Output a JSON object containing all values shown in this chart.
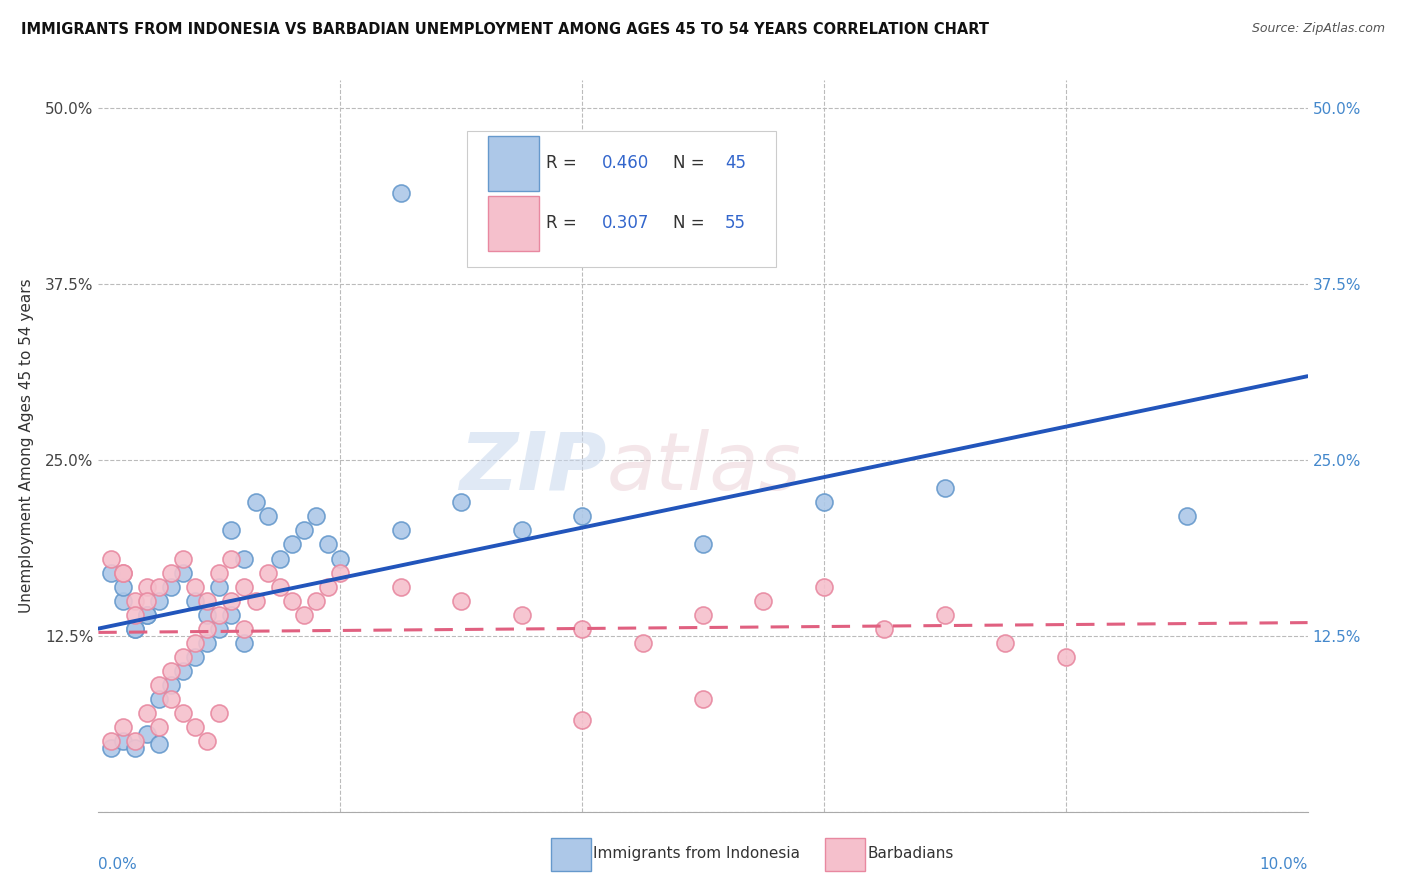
{
  "title": "IMMIGRANTS FROM INDONESIA VS BARBADIAN UNEMPLOYMENT AMONG AGES 45 TO 54 YEARS CORRELATION CHART",
  "source": "Source: ZipAtlas.com",
  "ylabel": "Unemployment Among Ages 45 to 54 years",
  "xlim": [
    0.0,
    0.1
  ],
  "ylim": [
    0.0,
    0.52
  ],
  "blue_R": 0.46,
  "blue_N": 45,
  "pink_R": 0.307,
  "pink_N": 55,
  "blue_dot_face": "#adc8e8",
  "blue_dot_edge": "#6699cc",
  "pink_dot_face": "#f5c0cc",
  "pink_dot_edge": "#e888a0",
  "blue_line_color": "#2255bb",
  "pink_line_color": "#e06080",
  "legend_blue_label": "Immigrants from Indonesia",
  "legend_pink_label": "Barbadians",
  "ytick_vals": [
    0.0,
    0.125,
    0.25,
    0.375,
    0.5
  ],
  "ytick_labels": [
    "",
    "12.5%",
    "25.0%",
    "37.5%",
    "50.0%"
  ],
  "right_tick_labels": [
    "50.0%",
    "37.5%",
    "25.0%",
    "12.5%",
    ""
  ],
  "blue_scatter_x": [
    0.001,
    0.002,
    0.003,
    0.004,
    0.005,
    0.002,
    0.003,
    0.004,
    0.005,
    0.006,
    0.007,
    0.008,
    0.009,
    0.01,
    0.011,
    0.012,
    0.001,
    0.002,
    0.003,
    0.004,
    0.005,
    0.006,
    0.007,
    0.008,
    0.009,
    0.01,
    0.011,
    0.012,
    0.013,
    0.014,
    0.015,
    0.016,
    0.017,
    0.018,
    0.019,
    0.02,
    0.025,
    0.03,
    0.035,
    0.04,
    0.05,
    0.06,
    0.07,
    0.09,
    0.025
  ],
  "blue_scatter_y": [
    0.045,
    0.05,
    0.045,
    0.055,
    0.048,
    0.15,
    0.13,
    0.14,
    0.08,
    0.09,
    0.1,
    0.11,
    0.12,
    0.13,
    0.14,
    0.12,
    0.17,
    0.16,
    0.13,
    0.14,
    0.15,
    0.16,
    0.17,
    0.15,
    0.14,
    0.16,
    0.2,
    0.18,
    0.22,
    0.21,
    0.18,
    0.19,
    0.2,
    0.21,
    0.19,
    0.18,
    0.2,
    0.22,
    0.2,
    0.21,
    0.19,
    0.22,
    0.23,
    0.21,
    0.44
  ],
  "pink_scatter_x": [
    0.001,
    0.002,
    0.003,
    0.004,
    0.005,
    0.006,
    0.007,
    0.008,
    0.009,
    0.01,
    0.002,
    0.003,
    0.004,
    0.005,
    0.006,
    0.007,
    0.008,
    0.009,
    0.01,
    0.011,
    0.012,
    0.001,
    0.002,
    0.003,
    0.004,
    0.005,
    0.006,
    0.007,
    0.008,
    0.009,
    0.01,
    0.011,
    0.012,
    0.013,
    0.014,
    0.015,
    0.016,
    0.017,
    0.018,
    0.019,
    0.02,
    0.025,
    0.03,
    0.035,
    0.04,
    0.045,
    0.05,
    0.055,
    0.06,
    0.065,
    0.07,
    0.075,
    0.08,
    0.04,
    0.05
  ],
  "pink_scatter_y": [
    0.05,
    0.06,
    0.05,
    0.07,
    0.06,
    0.08,
    0.07,
    0.06,
    0.05,
    0.07,
    0.17,
    0.15,
    0.16,
    0.09,
    0.1,
    0.11,
    0.12,
    0.13,
    0.14,
    0.15,
    0.13,
    0.18,
    0.17,
    0.14,
    0.15,
    0.16,
    0.17,
    0.18,
    0.16,
    0.15,
    0.17,
    0.18,
    0.16,
    0.15,
    0.17,
    0.16,
    0.15,
    0.14,
    0.15,
    0.16,
    0.17,
    0.16,
    0.15,
    0.14,
    0.13,
    0.12,
    0.14,
    0.15,
    0.16,
    0.13,
    0.14,
    0.12,
    0.11,
    0.065,
    0.08
  ]
}
